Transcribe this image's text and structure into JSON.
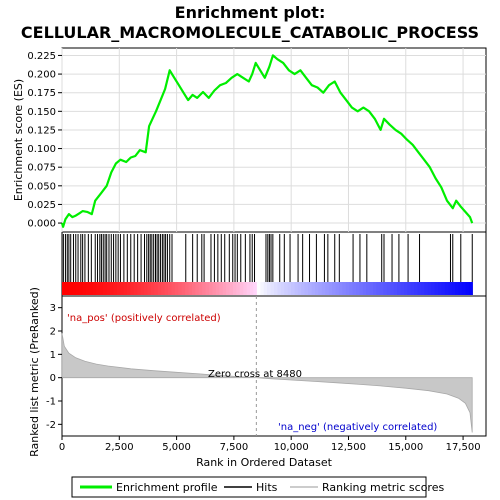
{
  "chart_data": {
    "type": "line",
    "title_line1": "Enrichment plot:",
    "title_line2": "CELLULAR_MACROMOLECULE_CATABOLIC_PROCESS",
    "es_ylabel": "Enrichment score (ES)",
    "metric_ylabel": "Ranked list metric (PreRanked)",
    "xlabel": "Rank in Ordered Dataset",
    "xlim": [
      0,
      18500
    ],
    "x_ticks": [
      0,
      2500,
      5000,
      7500,
      10000,
      12500,
      15000,
      17500
    ],
    "x_tick_labels": [
      "0",
      "2,500",
      "5,000",
      "7,500",
      "10,000",
      "12,500",
      "15,000",
      "17,500"
    ],
    "es_ylim": [
      -0.012,
      0.235
    ],
    "es_ticks": [
      0.0,
      0.025,
      0.05,
      0.075,
      0.1,
      0.125,
      0.15,
      0.175,
      0.2,
      0.225
    ],
    "es_tick_labels": [
      "0.000",
      "0.025",
      "0.050",
      "0.075",
      "0.100",
      "0.125",
      "0.150",
      "0.175",
      "0.200",
      "0.225"
    ],
    "metric_ylim": [
      -2.5,
      3.5
    ],
    "metric_ticks": [
      3,
      2,
      1,
      0,
      -1,
      -2
    ],
    "metric_tick_labels": [
      "3",
      "2",
      "1",
      "0",
      "-1",
      "-2"
    ],
    "zero_cross_rank": 8480,
    "zero_cross_label": "Zero cross at 8480",
    "pos_label": "'na_pos' (positively correlated)",
    "neg_label": "'na_neg' (negatively correlated)",
    "total_ranks": 17900,
    "enrichment_profile": {
      "name": "Enrichment profile",
      "color": "#00ee00",
      "points": [
        [
          0,
          0.0
        ],
        [
          50,
          -0.005
        ],
        [
          150,
          0.005
        ],
        [
          300,
          0.012
        ],
        [
          450,
          0.008
        ],
        [
          600,
          0.01
        ],
        [
          750,
          0.013
        ],
        [
          900,
          0.016
        ],
        [
          1100,
          0.015
        ],
        [
          1300,
          0.012
        ],
        [
          1450,
          0.03
        ],
        [
          1700,
          0.04
        ],
        [
          1950,
          0.05
        ],
        [
          2150,
          0.068
        ],
        [
          2350,
          0.08
        ],
        [
          2550,
          0.085
        ],
        [
          2800,
          0.082
        ],
        [
          3000,
          0.088
        ],
        [
          3200,
          0.09
        ],
        [
          3400,
          0.098
        ],
        [
          3650,
          0.095
        ],
        [
          3800,
          0.13
        ],
        [
          3950,
          0.14
        ],
        [
          4100,
          0.15
        ],
        [
          4300,
          0.165
        ],
        [
          4500,
          0.18
        ],
        [
          4700,
          0.205
        ],
        [
          4900,
          0.195
        ],
        [
          5100,
          0.185
        ],
        [
          5300,
          0.175
        ],
        [
          5500,
          0.165
        ],
        [
          5700,
          0.172
        ],
        [
          5900,
          0.168
        ],
        [
          6150,
          0.176
        ],
        [
          6400,
          0.168
        ],
        [
          6650,
          0.178
        ],
        [
          6900,
          0.185
        ],
        [
          7150,
          0.188
        ],
        [
          7400,
          0.195
        ],
        [
          7650,
          0.2
        ],
        [
          7900,
          0.195
        ],
        [
          8150,
          0.19
        ],
        [
          8300,
          0.2
        ],
        [
          8450,
          0.215
        ],
        [
          8650,
          0.205
        ],
        [
          8850,
          0.195
        ],
        [
          9050,
          0.21
        ],
        [
          9200,
          0.225
        ],
        [
          9400,
          0.22
        ],
        [
          9650,
          0.215
        ],
        [
          9900,
          0.205
        ],
        [
          10150,
          0.2
        ],
        [
          10400,
          0.205
        ],
        [
          10650,
          0.195
        ],
        [
          10900,
          0.185
        ],
        [
          11150,
          0.182
        ],
        [
          11400,
          0.175
        ],
        [
          11650,
          0.185
        ],
        [
          11900,
          0.19
        ],
        [
          12150,
          0.175
        ],
        [
          12400,
          0.165
        ],
        [
          12650,
          0.155
        ],
        [
          12900,
          0.15
        ],
        [
          13150,
          0.155
        ],
        [
          13400,
          0.15
        ],
        [
          13650,
          0.14
        ],
        [
          13900,
          0.125
        ],
        [
          14050,
          0.14
        ],
        [
          14300,
          0.132
        ],
        [
          14550,
          0.125
        ],
        [
          14800,
          0.12
        ],
        [
          15050,
          0.112
        ],
        [
          15300,
          0.105
        ],
        [
          15550,
          0.095
        ],
        [
          15800,
          0.085
        ],
        [
          16050,
          0.075
        ],
        [
          16300,
          0.06
        ],
        [
          16550,
          0.048
        ],
        [
          16800,
          0.03
        ],
        [
          17050,
          0.02
        ],
        [
          17200,
          0.03
        ],
        [
          17400,
          0.022
        ],
        [
          17600,
          0.015
        ],
        [
          17800,
          0.008
        ],
        [
          17900,
          0.0
        ]
      ]
    },
    "hits_label": "Hits",
    "hits": [
      60,
      150,
      230,
      300,
      380,
      500,
      600,
      700,
      820,
      900,
      1000,
      1150,
      1280,
      1450,
      1550,
      1650,
      1720,
      1800,
      1880,
      1950,
      2050,
      2150,
      2250,
      2350,
      2450,
      2550,
      2700,
      2850,
      3000,
      3150,
      3300,
      3450,
      3600,
      3700,
      3780,
      3850,
      3920,
      4000,
      4080,
      4150,
      4220,
      4300,
      4380,
      4450,
      4520,
      4600,
      4700,
      4800,
      5400,
      5700,
      5900,
      6100,
      6200,
      6500,
      6650,
      6800,
      6950,
      7100,
      7300,
      7450,
      7550,
      7650,
      7800,
      8000,
      8200,
      8300,
      8400,
      8900,
      8980,
      9050,
      9120,
      9200,
      9500,
      9700,
      9950,
      10300,
      10500,
      10800,
      11100,
      11450,
      11600,
      11900,
      12100,
      12700,
      13000,
      13300,
      13950,
      14050,
      14400,
      14700,
      15100,
      15600,
      16950,
      17050,
      17400,
      17900
    ],
    "metric_label": "Ranking metric scores",
    "metric_profile": [
      [
        0,
        1.9
      ],
      [
        100,
        1.35
      ],
      [
        300,
        1.05
      ],
      [
        600,
        0.85
      ],
      [
        1000,
        0.7
      ],
      [
        1500,
        0.58
      ],
      [
        2000,
        0.5
      ],
      [
        3000,
        0.38
      ],
      [
        4000,
        0.3
      ],
      [
        5000,
        0.23
      ],
      [
        6000,
        0.16
      ],
      [
        7000,
        0.09
      ],
      [
        8000,
        0.03
      ],
      [
        8480,
        0.0
      ],
      [
        9000,
        -0.04
      ],
      [
        10000,
        -0.1
      ],
      [
        11000,
        -0.16
      ],
      [
        12000,
        -0.22
      ],
      [
        13000,
        -0.29
      ],
      [
        14000,
        -0.36
      ],
      [
        15000,
        -0.45
      ],
      [
        16000,
        -0.56
      ],
      [
        16800,
        -0.7
      ],
      [
        17300,
        -0.88
      ],
      [
        17600,
        -1.1
      ],
      [
        17800,
        -1.5
      ],
      [
        17900,
        -2.35
      ]
    ]
  }
}
